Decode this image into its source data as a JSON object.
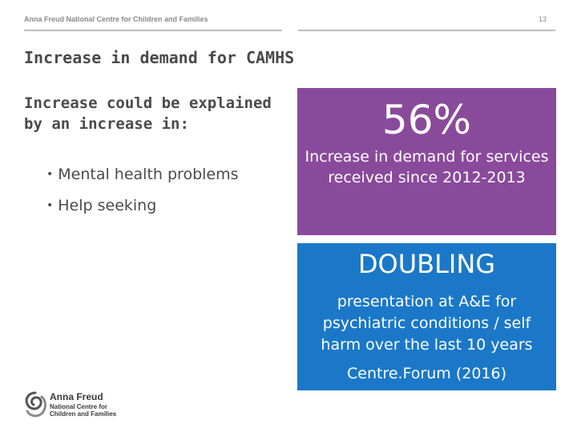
{
  "header": {
    "organisation": "Anna Freud National Centre for Children and Families",
    "page_number": "13"
  },
  "slide": {
    "title": "Increase in demand for CAMHS",
    "intro": "Increase could be explained by an increase in:",
    "bullets": [
      {
        "text": "Mental health problems"
      },
      {
        "text": "Help seeking"
      }
    ]
  },
  "stat_box": {
    "value": "56%",
    "description": "Increase in demand for services received since 2012-2013",
    "color": "#8a4a9b"
  },
  "highlight_box": {
    "headline": "DOUBLING",
    "description": "presentation at A&E for psychiatric conditions / self harm over the last 10 years",
    "source": "Centre.Forum (2016)",
    "color": "#1b78c8"
  },
  "logo": {
    "name": "Anna Freud",
    "line2": "National Centre for",
    "line3": "Children and Families",
    "icon": "anna-freud-logo-icon"
  }
}
